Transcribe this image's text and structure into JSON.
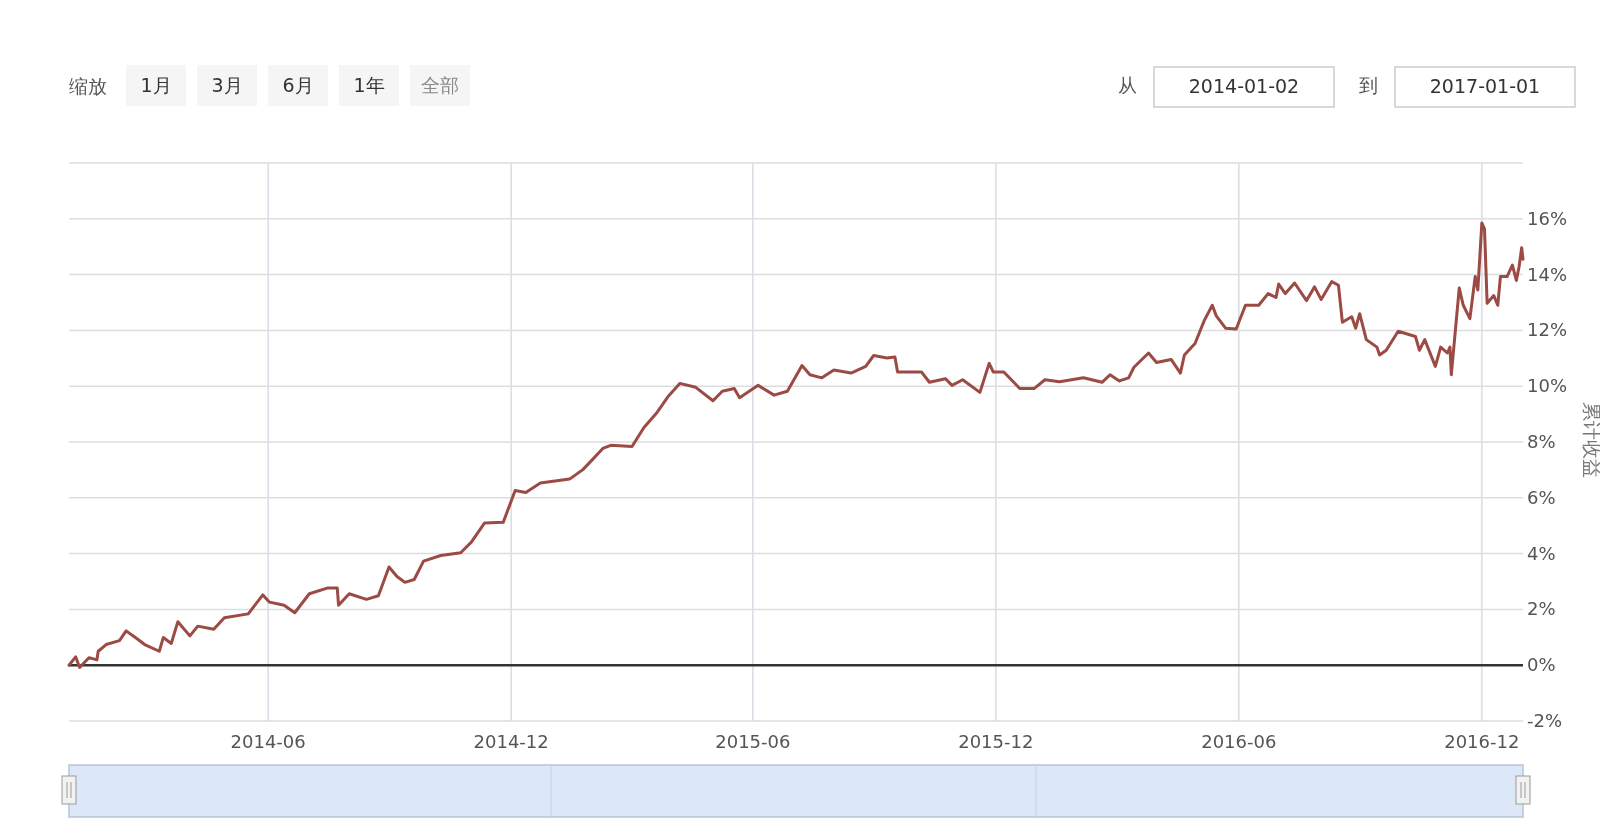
{
  "chart_data": {
    "type": "line",
    "ylabel": "累计收益",
    "annotations": [
      "缩放",
      "1月",
      "3月",
      "6月",
      "1年",
      "全部",
      "从",
      "2014-01-02",
      "到",
      "2017-01-01"
    ],
    "xlim": [
      "2014-01-02",
      "2017-01-01"
    ],
    "xticks": [
      {
        "value": "2014-06-01",
        "label": "2014-06"
      },
      {
        "value": "2014-12-01",
        "label": "2014-12"
      },
      {
        "value": "2015-06-01",
        "label": "2015-06"
      },
      {
        "value": "2015-12-01",
        "label": "2015-12"
      },
      {
        "value": "2016-06-01",
        "label": "2016-06"
      },
      {
        "value": "2016-12-01",
        "label": "2016-12"
      }
    ],
    "ylim": [
      -2,
      18
    ],
    "yticks": [
      {
        "value": -2,
        "label": "-2%"
      },
      {
        "value": 0,
        "label": "0%"
      },
      {
        "value": 2,
        "label": "2%"
      },
      {
        "value": 4,
        "label": "4%"
      },
      {
        "value": 6,
        "label": "6%"
      },
      {
        "value": 8,
        "label": "8%"
      },
      {
        "value": 10,
        "label": "10%"
      },
      {
        "value": 12,
        "label": "12%"
      },
      {
        "value": 14,
        "label": "14%"
      },
      {
        "value": 16,
        "label": "16%"
      },
      {
        "value": 18,
        "label": null
      }
    ],
    "grid": true,
    "marker": "none",
    "line_style": "solid",
    "ref_lines": [
      {
        "axis": "y",
        "value": 0,
        "color": "#333333"
      }
    ],
    "x": [
      "2014-01-02",
      "2014-01-07",
      "2014-01-10",
      "2014-01-17",
      "2014-01-23",
      "2014-01-24",
      "2014-01-30",
      "2014-02-09",
      "2014-02-14",
      "2014-02-21",
      "2014-02-28",
      "2014-03-11",
      "2014-03-14",
      "2014-03-20",
      "2014-03-25",
      "2014-04-03",
      "2014-04-09",
      "2014-04-21",
      "2014-04-29",
      "2014-05-17",
      "2014-05-28",
      "2014-06-02",
      "2014-06-13",
      "2014-06-21",
      "2014-07-02",
      "2014-07-16",
      "2014-07-23",
      "2014-07-24",
      "2014-08-01",
      "2014-08-14",
      "2014-08-23",
      "2014-08-31",
      "2014-09-06",
      "2014-09-12",
      "2014-09-19",
      "2014-09-26",
      "2014-10-09",
      "2014-10-24",
      "2014-11-01",
      "2014-11-11",
      "2014-11-25",
      "2014-12-04",
      "2014-12-12",
      "2014-12-23",
      "2015-01-14",
      "2015-01-24",
      "2015-01-31",
      "2015-02-08",
      "2015-02-14",
      "2015-03-02",
      "2015-03-11",
      "2015-03-21",
      "2015-03-29",
      "2015-04-07",
      "2015-04-19",
      "2015-05-02",
      "2015-05-09",
      "2015-05-18",
      "2015-05-22",
      "2015-06-05",
      "2015-06-17",
      "2015-06-27",
      "2015-07-08",
      "2015-07-14",
      "2015-07-23",
      "2015-08-01",
      "2015-08-14",
      "2015-08-25",
      "2015-08-31",
      "2015-09-10",
      "2015-09-16",
      "2015-09-18",
      "2015-10-06",
      "2015-10-12",
      "2015-10-24",
      "2015-10-29",
      "2015-11-06",
      "2015-11-19",
      "2015-11-26",
      "2015-11-29",
      "2015-12-07",
      "2015-12-19",
      "2015-12-30",
      "2016-01-07",
      "2016-01-18",
      "2016-02-05",
      "2016-02-19",
      "2016-02-25",
      "2016-03-03",
      "2016-03-10",
      "2016-03-14",
      "2016-03-25",
      "2016-03-31",
      "2016-04-11",
      "2016-04-18",
      "2016-04-21",
      "2016-04-29",
      "2016-05-06",
      "2016-05-12",
      "2016-05-15",
      "2016-05-22",
      "2016-05-30",
      "2016-06-06",
      "2016-06-16",
      "2016-06-23",
      "2016-06-29",
      "2016-07-01",
      "2016-07-06",
      "2016-07-13",
      "2016-07-22",
      "2016-07-28",
      "2016-08-02",
      "2016-08-10",
      "2016-08-15",
      "2016-08-18",
      "2016-08-25",
      "2016-08-28",
      "2016-08-31",
      "2016-09-05",
      "2016-09-13",
      "2016-09-15",
      "2016-09-20",
      "2016-09-29",
      "2016-10-12",
      "2016-10-15",
      "2016-10-19",
      "2016-10-27",
      "2016-10-31",
      "2016-11-05",
      "2016-11-07",
      "2016-11-08",
      "2016-11-14",
      "2016-11-17",
      "2016-11-22",
      "2016-11-26",
      "2016-11-28",
      "2016-12-01",
      "2016-12-03",
      "2016-12-05",
      "2016-12-10",
      "2016-12-13",
      "2016-12-15",
      "2016-12-20",
      "2016-12-24",
      "2016-12-27",
      "2016-12-29",
      "2016-12-31",
      "2017-01-01"
    ],
    "series": [
      {
        "color": "#9b4a44",
        "values": [
          0.0,
          0.3,
          -0.08,
          0.27,
          0.19,
          0.5,
          0.74,
          0.88,
          1.23,
          0.99,
          0.74,
          0.5,
          0.99,
          0.78,
          1.56,
          1.05,
          1.4,
          1.29,
          1.7,
          1.84,
          2.52,
          2.26,
          2.15,
          1.88,
          2.56,
          2.77,
          2.77,
          2.15,
          2.56,
          2.36,
          2.49,
          3.52,
          3.18,
          2.97,
          3.07,
          3.73,
          3.93,
          4.03,
          4.41,
          5.1,
          5.12,
          6.26,
          6.19,
          6.53,
          6.67,
          7.01,
          7.36,
          7.77,
          7.88,
          7.84,
          8.52,
          9.07,
          9.62,
          10.1,
          9.96,
          9.48,
          9.82,
          9.92,
          9.59,
          10.03,
          9.68,
          9.82,
          10.74,
          10.41,
          10.3,
          10.58,
          10.47,
          10.71,
          11.1,
          11.01,
          11.05,
          10.51,
          10.51,
          10.14,
          10.27,
          10.03,
          10.23,
          9.78,
          10.82,
          10.51,
          10.51,
          9.92,
          9.92,
          10.23,
          10.16,
          10.3,
          10.14,
          10.41,
          10.19,
          10.3,
          10.68,
          11.19,
          10.85,
          10.96,
          10.47,
          11.12,
          11.53,
          12.36,
          12.9,
          12.52,
          12.08,
          12.05,
          12.9,
          12.9,
          13.32,
          13.18,
          13.66,
          13.32,
          13.7,
          13.07,
          13.56,
          13.11,
          13.75,
          13.62,
          12.29,
          12.49,
          12.08,
          12.6,
          11.67,
          11.4,
          11.12,
          11.29,
          11.97,
          11.78,
          11.29,
          11.67,
          10.71,
          11.4,
          11.19,
          11.4,
          10.41,
          13.52,
          12.9,
          12.42,
          13.93,
          13.45,
          15.85,
          15.64,
          12.97,
          13.25,
          12.9,
          13.93,
          13.93,
          14.34,
          13.79,
          14.27,
          14.96,
          14.55
        ]
      }
    ]
  }
}
